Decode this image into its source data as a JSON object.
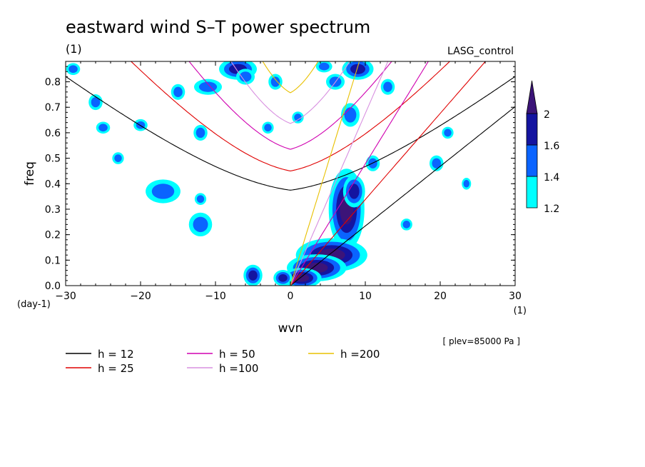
{
  "chart_data": {
    "type": "heatmap",
    "title": "eastward wind S–T power spectrum",
    "subtitle_left": "(1)",
    "subtitle_right": "LASG_control",
    "xlabel": "wvn",
    "ylabel": "freq",
    "xunit": "(1)",
    "yunit": "(day-1)",
    "annotation": "[ plev=85000 Pa ]",
    "xlim": [
      -30,
      30
    ],
    "ylim": [
      0,
      0.88
    ],
    "xticks": [
      -30,
      -20,
      -10,
      0,
      10,
      20,
      30
    ],
    "yticks": [
      0,
      0.1,
      0.2,
      0.3,
      0.4,
      0.5,
      0.6,
      0.7,
      0.8
    ],
    "xtick_labels": [
      "−30",
      "−20",
      "−10",
      "0",
      "10",
      "20",
      "30"
    ],
    "ytick_labels": [
      "0.0",
      "0.1",
      "0.2",
      "0.3",
      "0.4",
      "0.5",
      "0.6",
      "0.7",
      "0.8"
    ],
    "colorbar": {
      "levels": [
        1.2,
        1.4,
        1.6,
        2
      ],
      "labels": [
        "1.2",
        "1.4",
        "1.6",
        "2"
      ],
      "colors": [
        "#00ffff",
        "#0a64ff",
        "#1414a0",
        "#3c1478"
      ]
    },
    "dispersion_curves": [
      {
        "label": "h = 12",
        "h": 12,
        "color": "#000000"
      },
      {
        "label": "h = 25",
        "h": 25,
        "color": "#e00000"
      },
      {
        "label": "h = 50",
        "h": 50,
        "color": "#d000b0"
      },
      {
        "label": "h =100",
        "h": 100,
        "color": "#d890e0"
      },
      {
        "label": "h =200",
        "h": 200,
        "color": "#e8c000"
      }
    ],
    "spectral_blobs": [
      {
        "x": 7.5,
        "y": 0.3,
        "level": 3,
        "rx": 0.9,
        "ry": 0.06
      },
      {
        "x": 5.5,
        "y": 0.12,
        "level": 3,
        "rx": 1.8,
        "ry": 0.025
      },
      {
        "x": 3.5,
        "y": 0.07,
        "level": 3,
        "rx": 1.5,
        "ry": 0.02
      },
      {
        "x": 8.5,
        "y": 0.37,
        "level": 2,
        "rx": 0.7,
        "ry": 0.03
      },
      {
        "x": 1.5,
        "y": 0.03,
        "level": 3,
        "rx": 1.0,
        "ry": 0.015
      },
      {
        "x": -5.0,
        "y": 0.04,
        "level": 2,
        "rx": 0.6,
        "ry": 0.02
      },
      {
        "x": -1.0,
        "y": 0.03,
        "level": 2,
        "rx": 0.6,
        "ry": 0.015
      },
      {
        "x": -7.0,
        "y": 0.85,
        "level": 2,
        "rx": 1.2,
        "ry": 0.02
      },
      {
        "x": 9.0,
        "y": 0.85,
        "level": 2,
        "rx": 1.0,
        "ry": 0.02
      },
      {
        "x": 8.0,
        "y": 0.67,
        "level": 1,
        "rx": 0.8,
        "ry": 0.03
      },
      {
        "x": -25.0,
        "y": 0.62,
        "level": 1,
        "rx": 0.6,
        "ry": 0.015
      },
      {
        "x": -17.0,
        "y": 0.37,
        "level": 1,
        "rx": 1.5,
        "ry": 0.03
      },
      {
        "x": -12.0,
        "y": 0.34,
        "level": 1,
        "rx": 0.5,
        "ry": 0.015
      },
      {
        "x": -12.0,
        "y": 0.24,
        "level": 1,
        "rx": 1.0,
        "ry": 0.03
      },
      {
        "x": -6.0,
        "y": 0.82,
        "level": 1,
        "rx": 0.8,
        "ry": 0.02
      },
      {
        "x": -29.0,
        "y": 0.85,
        "level": 1,
        "rx": 0.6,
        "ry": 0.015
      },
      {
        "x": -23.0,
        "y": 0.5,
        "level": 1,
        "rx": 0.5,
        "ry": 0.015
      },
      {
        "x": -15.0,
        "y": 0.76,
        "level": 1,
        "rx": 0.6,
        "ry": 0.02
      },
      {
        "x": -12.0,
        "y": 0.6,
        "level": 1,
        "rx": 0.6,
        "ry": 0.02
      },
      {
        "x": -11.0,
        "y": 0.78,
        "level": 1,
        "rx": 1.2,
        "ry": 0.02
      },
      {
        "x": -3.0,
        "y": 0.62,
        "level": 1,
        "rx": 0.5,
        "ry": 0.015
      },
      {
        "x": 6.0,
        "y": 0.8,
        "level": 1,
        "rx": 0.8,
        "ry": 0.02
      },
      {
        "x": 11.0,
        "y": 0.48,
        "level": 1,
        "rx": 0.6,
        "ry": 0.02
      },
      {
        "x": 13.0,
        "y": 0.78,
        "level": 1,
        "rx": 0.6,
        "ry": 0.02
      },
      {
        "x": 15.5,
        "y": 0.24,
        "level": 1,
        "rx": 0.5,
        "ry": 0.015
      },
      {
        "x": 19.5,
        "y": 0.48,
        "level": 1,
        "rx": 0.6,
        "ry": 0.02
      },
      {
        "x": 21.0,
        "y": 0.6,
        "level": 1,
        "rx": 0.5,
        "ry": 0.015
      },
      {
        "x": 23.5,
        "y": 0.4,
        "level": 1,
        "rx": 0.4,
        "ry": 0.015
      },
      {
        "x": -26.0,
        "y": 0.72,
        "level": 1,
        "rx": 0.6,
        "ry": 0.02
      },
      {
        "x": -20.0,
        "y": 0.63,
        "level": 1,
        "rx": 0.6,
        "ry": 0.015
      },
      {
        "x": 4.5,
        "y": 0.86,
        "level": 1,
        "rx": 0.7,
        "ry": 0.015
      },
      {
        "x": -2.0,
        "y": 0.8,
        "level": 1,
        "rx": 0.6,
        "ry": 0.02
      },
      {
        "x": 1.0,
        "y": 0.66,
        "level": 1,
        "rx": 0.5,
        "ry": 0.015
      }
    ]
  }
}
